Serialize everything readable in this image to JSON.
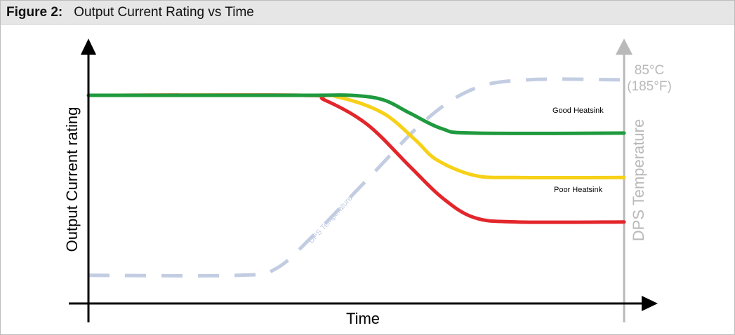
{
  "figure": {
    "label": "Figure 2:",
    "title": "Output Current Rating vs Time"
  },
  "colors": {
    "good": "#1f9a3e",
    "medium": "#f7d117",
    "poor": "#e3262b",
    "temperature": "#c3cde2",
    "right_axis": "#b9b9b9",
    "axis": "#000000"
  },
  "chart_data": {
    "type": "line",
    "title": "Output Current Rating vs Time",
    "xlabel": "Time",
    "ylabel": "Output Current rating",
    "y2label": "DPS Temperature",
    "y2_top_label_line1": "85°C",
    "y2_top_label_line2": "(185°F)",
    "ticks": "none",
    "grid": false,
    "xlim": [
      0,
      100
    ],
    "ylim": [
      0,
      100
    ],
    "series": [
      {
        "name": "Good Heatsink",
        "color": "#1f9a3e",
        "style": "solid",
        "x": [
          0,
          40,
          49,
          55,
          60,
          66,
          72,
          100
        ],
        "y": [
          88,
          88,
          88,
          86,
          80,
          73,
          71,
          71
        ]
      },
      {
        "name": "",
        "color": "#f7d117",
        "style": "solid",
        "x": [
          0,
          40,
          47,
          55,
          61,
          65,
          72,
          80,
          100
        ],
        "y": [
          88,
          88,
          87,
          80,
          68,
          59,
          52,
          51,
          51
        ]
      },
      {
        "name": "Poor Heatsink",
        "color": "#e3262b",
        "style": "solid",
        "x": [
          0,
          40,
          44,
          52,
          60,
          66,
          72,
          80,
          100
        ],
        "y": [
          88,
          88,
          86,
          75,
          56,
          42,
          33,
          31,
          31
        ]
      },
      {
        "name": "DPS Temperature",
        "color": "#c3cde2",
        "style": "dashed",
        "x": [
          0,
          28,
          35,
          42,
          52,
          63,
          72,
          82,
          100
        ],
        "y": [
          7,
          7,
          10,
          25,
          50,
          77,
          91,
          95,
          95
        ]
      }
    ],
    "annotations": [
      {
        "text": "Good Heatsink",
        "series": "Good Heatsink"
      },
      {
        "text": "Poor Heatsink",
        "series": "Poor Heatsink"
      },
      {
        "text": "DPS Temperature",
        "series": "DPS Temperature"
      }
    ]
  }
}
